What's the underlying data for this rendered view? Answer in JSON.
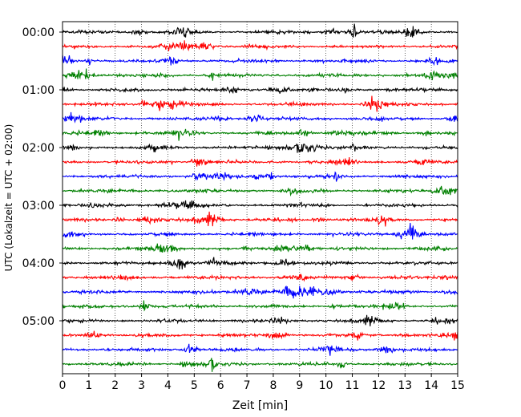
{
  "chart_data": {
    "type": "line",
    "title": "",
    "xlabel": "Zeit  [min]",
    "ylabel": "UTC (Lokalzeit = UTC + 02:00)",
    "xlim": [
      0,
      15
    ],
    "x_ticks": [
      "0",
      "1",
      "2",
      "3",
      "4",
      "5",
      "6",
      "7",
      "8",
      "9",
      "10",
      "11",
      "12",
      "13",
      "14",
      "15"
    ],
    "y_tick_labels": [
      "00:00",
      "01:00",
      "02:00",
      "03:00",
      "04:00",
      "05:00"
    ],
    "row_interval_minutes": 15,
    "row_count": 24,
    "trace_colors": [
      "#000000",
      "#ff0000",
      "#0000ff",
      "#008000"
    ],
    "vertical_grid": true,
    "grid_style": "dotted",
    "legend": "none",
    "rows": [
      {
        "label": "00:00"
      },
      {
        "label": "00:15"
      },
      {
        "label": "00:30"
      },
      {
        "label": "00:45"
      },
      {
        "label": "01:00"
      },
      {
        "label": "01:15"
      },
      {
        "label": "01:30"
      },
      {
        "label": "01:45"
      },
      {
        "label": "02:00"
      },
      {
        "label": "02:15"
      },
      {
        "label": "02:30"
      },
      {
        "label": "02:45"
      },
      {
        "label": "03:00"
      },
      {
        "label": "03:15"
      },
      {
        "label": "03:30"
      },
      {
        "label": "03:45"
      },
      {
        "label": "04:00"
      },
      {
        "label": "04:15"
      },
      {
        "label": "04:30"
      },
      {
        "label": "04:45"
      },
      {
        "label": "05:00"
      },
      {
        "label": "05:15"
      },
      {
        "label": "05:30"
      },
      {
        "label": "05:45"
      }
    ]
  }
}
